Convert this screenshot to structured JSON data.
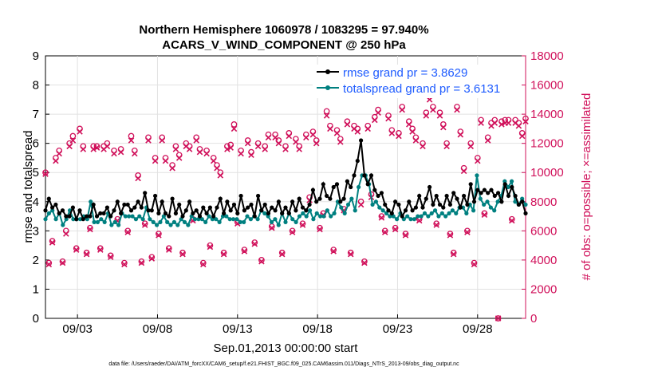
{
  "chart_data": {
    "type": "line",
    "title_line1": "Northern Hemisphere 1060978 / 1083295 = 97.940%",
    "title_line2": "ACARS_V_WIND_COMPONENT @ 250 hPa",
    "xlabel": "Sep.01,2013 00:00:00 start",
    "ylabel_left": "rmse and totalspread",
    "ylabel_right": "# of obs: o=possible; ×=assimilated",
    "footnote": "data file: /Users/raeder/DAI/ATM_forcXX/CAM6_setup/f.e21.FHIST_BGC.f09_025.CAM6assim.011/Diags_NTrS_2013-09/obs_diag_output.nc",
    "xlim": [
      1.0,
      31.0
    ],
    "ylim_left": [
      0,
      9
    ],
    "ylim_right": [
      0,
      18000
    ],
    "x_ticks": [
      3,
      8,
      13,
      18,
      23,
      28
    ],
    "x_tick_labels": [
      "09/03",
      "09/08",
      "09/13",
      "09/18",
      "09/23",
      "09/28"
    ],
    "y_left_ticks": [
      "0",
      "1",
      "2",
      "3",
      "4",
      "5",
      "6",
      "7",
      "8",
      "9"
    ],
    "y_right_ticks": [
      "0",
      "2000",
      "4000",
      "6000",
      "8000",
      "10000",
      "12000",
      "14000",
      "16000",
      "18000"
    ],
    "colors": {
      "rmse": "#000000",
      "spread": "#008080",
      "obs": "#d0105a",
      "legend_text": "#1f5cff"
    },
    "legend": [
      {
        "name": "rmse grand pr = 3.8629",
        "color": "#000000"
      },
      {
        "name": "totalspread grand pr = 3.6131",
        "color": "#008080"
      }
    ],
    "series": [
      {
        "name": "rmse",
        "values": [
          3.7,
          4.1,
          3.8,
          3.9,
          3.6,
          3.7,
          3.5,
          3.5,
          3.8,
          3.4,
          3.7,
          3.4,
          3.5,
          3.5,
          3.9,
          3.5,
          3.6,
          3.6,
          3.8,
          3.5,
          3.7,
          4.0,
          3.6,
          3.9,
          3.9,
          3.7,
          3.8,
          4.0,
          3.8,
          4.3,
          3.7,
          3.7,
          4.2,
          3.6,
          4.0,
          3.6,
          3.5,
          4.1,
          3.6,
          3.9,
          3.5,
          3.7,
          4.0,
          3.6,
          3.7,
          3.5,
          3.8,
          3.6,
          3.8,
          3.5,
          3.8,
          4.1,
          3.6,
          4.0,
          3.7,
          3.9,
          3.6,
          4.2,
          3.7,
          3.8,
          3.9,
          3.5,
          4.2,
          3.7,
          3.9,
          3.6,
          3.8,
          3.7,
          4.0,
          3.6,
          3.8,
          3.6,
          4.0,
          3.7,
          4.1,
          3.8,
          3.7,
          3.9,
          4.4,
          4.0,
          4.1,
          4.6,
          4.2,
          4.1,
          4.5,
          4.6,
          4.0,
          4.1,
          4.7,
          4.5,
          4.9,
          5.4,
          6.1,
          4.9,
          4.6,
          4.9,
          4.4,
          4.2,
          4.3,
          3.9,
          3.7,
          3.6,
          4.0,
          3.9,
          3.5,
          3.7,
          4.0,
          3.7,
          3.8,
          4.2,
          3.8,
          4.1,
          4.5,
          3.9,
          4.2,
          3.9,
          3.8,
          4.2,
          3.9,
          4.3,
          4.1,
          3.8,
          4.2,
          3.9,
          4.6,
          4.0,
          4.4,
          4.3,
          4.4,
          4.3,
          4.4,
          4.2,
          4.3,
          4.0,
          4.6,
          4.2,
          4.5,
          4.2,
          3.9,
          4.0,
          3.6
        ]
      },
      {
        "name": "totalspread",
        "values": [
          3.4,
          3.6,
          3.7,
          3.4,
          3.6,
          3.2,
          3.4,
          3.7,
          3.4,
          3.4,
          3.4,
          3.5,
          3.4,
          4.0,
          3.3,
          3.3,
          3.4,
          3.3,
          3.6,
          3.2,
          3.3,
          3.2,
          3.6,
          3.5,
          3.5,
          3.5,
          3.4,
          3.5,
          3.4,
          3.8,
          3.4,
          3.3,
          3.2,
          3.3,
          3.5,
          3.3,
          3.2,
          3.3,
          3.2,
          3.4,
          3.3,
          3.2,
          3.5,
          3.4,
          3.4,
          3.4,
          3.3,
          3.5,
          3.4,
          3.4,
          3.3,
          3.5,
          3.5,
          3.4,
          3.4,
          3.4,
          3.3,
          3.3,
          3.5,
          3.4,
          3.5,
          3.4,
          3.7,
          3.6,
          3.5,
          3.3,
          3.4,
          3.2,
          3.6,
          3.3,
          3.6,
          3.4,
          3.3,
          3.5,
          3.6,
          3.5,
          3.7,
          3.4,
          3.6,
          3.5,
          3.5,
          3.7,
          3.5,
          3.6,
          4.0,
          3.8,
          3.6,
          3.9,
          4.1,
          3.7,
          4.5,
          4.9,
          4.9,
          4.6,
          3.9,
          4.0,
          3.8,
          3.7,
          3.6,
          3.5,
          3.5,
          3.4,
          3.6,
          3.4,
          3.5,
          3.4,
          3.4,
          3.5,
          3.5,
          3.6,
          3.5,
          3.6,
          3.7,
          3.5,
          3.6,
          3.5,
          3.6,
          3.7,
          3.6,
          3.8,
          3.8,
          3.6,
          3.9,
          3.7,
          4.9,
          4.1,
          3.9,
          4.0,
          3.8,
          3.7,
          4.0,
          4.2,
          4.7,
          4.5,
          4.7,
          4.0,
          3.9,
          4.1,
          3.9
        ]
      },
      {
        "name": "obs possible",
        "values": [
          10000,
          3800,
          5300,
          11000,
          11500,
          3900,
          6000,
          12000,
          12500,
          4800,
          13000,
          11800,
          4500,
          6200,
          11800,
          11800,
          4800,
          11800,
          12000,
          4300,
          11500,
          6800,
          11600,
          3800,
          6000,
          12500,
          11500,
          9800,
          3900,
          6500,
          12400,
          4200,
          11000,
          5800,
          12400,
          11000,
          4800,
          10500,
          11800,
          11200,
          4500,
          12000,
          11800,
          6800,
          12400,
          11600,
          3800,
          11500,
          5000,
          11000,
          10500,
          10000,
          4500,
          11800,
          11900,
          13300,
          6600,
          11500,
          4700,
          12200,
          11400,
          5200,
          12000,
          4000,
          11800,
          12600,
          6300,
          12600,
          12200,
          4500,
          11800,
          12700,
          6000,
          12300,
          11800,
          6500,
          12600,
          8300,
          12800,
          12200,
          6200,
          7200,
          14200,
          13200,
          4700,
          12900,
          12300,
          7500,
          13500,
          4500,
          13200,
          13000,
          8000,
          3900,
          13200,
          8500,
          13800,
          14300,
          7000,
          6000,
          13900,
          12900,
          6200,
          12700,
          14500,
          5800,
          13500,
          13000,
          12400,
          6800,
          12000,
          14100,
          15200,
          14500,
          6500,
          14100,
          13300,
          12000,
          5800,
          4500,
          14500,
          12800,
          10300,
          6000,
          12000,
          3800,
          11000,
          13600,
          7200,
          12400,
          13400,
          13600,
          0,
          13500,
          13600,
          13600,
          6800,
          13600,
          13400,
          12700,
          13700
        ]
      },
      {
        "name": "obs assimilated",
        "values": [
          9900,
          3700,
          5200,
          10800,
          11300,
          3800,
          5800,
          11800,
          12200,
          4700,
          12800,
          11600,
          4400,
          6100,
          11600,
          11700,
          4700,
          11600,
          11800,
          4200,
          11300,
          6700,
          11400,
          3700,
          5900,
          12200,
          11300,
          9600,
          3800,
          6400,
          12200,
          4100,
          10800,
          5700,
          12200,
          10800,
          4700,
          10300,
          11600,
          11000,
          4400,
          11800,
          11600,
          6700,
          12200,
          11400,
          3700,
          11300,
          4900,
          10800,
          10300,
          9800,
          4400,
          11600,
          11700,
          13000,
          6500,
          11300,
          4600,
          12000,
          11200,
          5100,
          11800,
          3900,
          11600,
          12400,
          6200,
          12400,
          12000,
          4400,
          11600,
          12500,
          5900,
          12100,
          11600,
          6400,
          12400,
          8100,
          12600,
          12000,
          6100,
          7100,
          13900,
          13000,
          4600,
          12700,
          12100,
          7400,
          13300,
          4400,
          13000,
          12800,
          7800,
          3800,
          13000,
          8300,
          13600,
          14100,
          6900,
          5900,
          13700,
          12700,
          6100,
          12500,
          14300,
          5700,
          13300,
          12800,
          12200,
          6700,
          11800,
          13900,
          15000,
          14300,
          6400,
          13900,
          13100,
          11800,
          5700,
          4400,
          14300,
          12600,
          10100,
          5900,
          11800,
          3700,
          10800,
          13400,
          7100,
          12200,
          13200,
          13400,
          0,
          13300,
          13400,
          13400,
          6700,
          13400,
          13200,
          12500,
          13500
        ]
      }
    ]
  }
}
